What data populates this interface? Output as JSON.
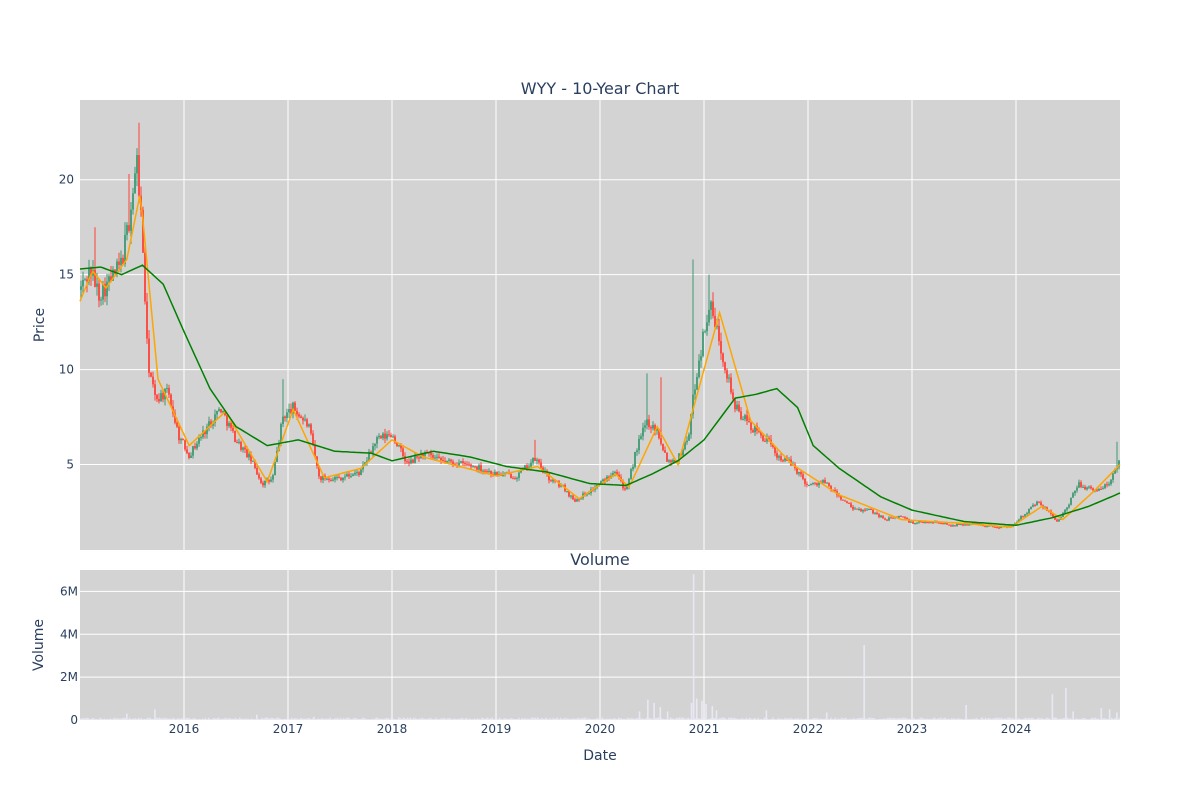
{
  "chart_data": [
    {
      "type": "candlestick",
      "title": "WYY - 10-Year Chart",
      "ylabel": "Price",
      "xlim": [
        2015.0,
        2025.0
      ],
      "ylim": [
        0.5,
        24.2
      ],
      "grid": true,
      "x_ticks": [
        "2016",
        "2017",
        "2018",
        "2019",
        "2020",
        "2021",
        "2022",
        "2023",
        "2024"
      ],
      "y_ticks": [
        "5",
        "10",
        "15",
        "20"
      ],
      "colors": {
        "plot_bg": "#d3d3d3",
        "increasing": "#3d9970",
        "decreasing": "#ff4136",
        "ma_short": "#ffa500",
        "ma_long": "#008000"
      },
      "price_keyframes": [
        [
          2015.0,
          14.2
        ],
        [
          2015.1,
          15.3
        ],
        [
          2015.18,
          14.0
        ],
        [
          2015.28,
          14.6
        ],
        [
          2015.4,
          15.6
        ],
        [
          2015.47,
          17.8
        ],
        [
          2015.55,
          21.0
        ],
        [
          2015.6,
          17.0
        ],
        [
          2015.65,
          10.5
        ],
        [
          2015.72,
          8.5
        ],
        [
          2015.85,
          8.8
        ],
        [
          2015.95,
          6.5
        ],
        [
          2016.05,
          5.5
        ],
        [
          2016.2,
          6.8
        ],
        [
          2016.35,
          8.0
        ],
        [
          2016.5,
          6.3
        ],
        [
          2016.65,
          5.2
        ],
        [
          2016.75,
          4.0
        ],
        [
          2016.85,
          4.2
        ],
        [
          2016.95,
          7.5
        ],
        [
          2017.05,
          8.0
        ],
        [
          2017.2,
          7.0
        ],
        [
          2017.3,
          4.3
        ],
        [
          2017.5,
          4.3
        ],
        [
          2017.7,
          4.6
        ],
        [
          2017.85,
          6.3
        ],
        [
          2018.0,
          6.6
        ],
        [
          2018.15,
          5.0
        ],
        [
          2018.3,
          5.6
        ],
        [
          2018.45,
          5.2
        ],
        [
          2018.6,
          5.1
        ],
        [
          2018.8,
          4.9
        ],
        [
          2019.0,
          4.5
        ],
        [
          2019.2,
          4.4
        ],
        [
          2019.38,
          5.3
        ],
        [
          2019.5,
          4.3
        ],
        [
          2019.65,
          3.8
        ],
        [
          2019.75,
          3.1
        ],
        [
          2019.9,
          3.6
        ],
        [
          2020.05,
          4.2
        ],
        [
          2020.15,
          4.8
        ],
        [
          2020.25,
          3.5
        ],
        [
          2020.35,
          5.8
        ],
        [
          2020.45,
          7.3
        ],
        [
          2020.55,
          6.8
        ],
        [
          2020.65,
          5.2
        ],
        [
          2020.75,
          5.3
        ],
        [
          2020.85,
          6.5
        ],
        [
          2020.92,
          9.5
        ],
        [
          2021.05,
          13.5
        ],
        [
          2021.15,
          11.5
        ],
        [
          2021.3,
          8.0
        ],
        [
          2021.45,
          7.0
        ],
        [
          2021.6,
          6.3
        ],
        [
          2021.7,
          5.5
        ],
        [
          2021.85,
          5.0
        ],
        [
          2022.0,
          3.9
        ],
        [
          2022.15,
          4.1
        ],
        [
          2022.3,
          3.3
        ],
        [
          2022.45,
          2.6
        ],
        [
          2022.6,
          2.6
        ],
        [
          2022.75,
          2.1
        ],
        [
          2022.9,
          2.3
        ],
        [
          2023.0,
          1.9
        ],
        [
          2023.2,
          2.0
        ],
        [
          2023.4,
          1.8
        ],
        [
          2023.6,
          1.9
        ],
        [
          2023.8,
          1.7
        ],
        [
          2023.95,
          1.75
        ],
        [
          2024.1,
          2.5
        ],
        [
          2024.2,
          3.0
        ],
        [
          2024.3,
          2.6
        ],
        [
          2024.4,
          2.0
        ],
        [
          2024.5,
          2.8
        ],
        [
          2024.6,
          4.0
        ],
        [
          2024.75,
          3.6
        ],
        [
          2024.9,
          4.0
        ],
        [
          2025.0,
          5.3
        ]
      ],
      "spikes": [
        [
          2015.57,
          23.0
        ],
        [
          2015.47,
          20.3
        ],
        [
          2015.15,
          17.5
        ],
        [
          2020.9,
          15.8
        ],
        [
          2021.05,
          15.0
        ],
        [
          2020.45,
          9.8
        ],
        [
          2020.58,
          9.6
        ],
        [
          2016.96,
          9.5
        ],
        [
          2019.37,
          6.3
        ],
        [
          2024.97,
          6.2
        ]
      ],
      "ma_short_keyframes": [
        [
          2015.0,
          13.6
        ],
        [
          2015.12,
          15.2
        ],
        [
          2015.25,
          14.3
        ],
        [
          2015.45,
          15.8
        ],
        [
          2015.58,
          19.3
        ],
        [
          2015.75,
          9.5
        ],
        [
          2016.05,
          6.0
        ],
        [
          2016.4,
          7.8
        ],
        [
          2016.8,
          4.1
        ],
        [
          2017.05,
          7.9
        ],
        [
          2017.35,
          4.3
        ],
        [
          2017.7,
          4.8
        ],
        [
          2018.0,
          6.3
        ],
        [
          2018.3,
          5.4
        ],
        [
          2019.0,
          4.4
        ],
        [
          2019.4,
          4.9
        ],
        [
          2019.8,
          3.2
        ],
        [
          2020.15,
          4.5
        ],
        [
          2020.28,
          3.8
        ],
        [
          2020.55,
          7.0
        ],
        [
          2020.75,
          5.0
        ],
        [
          2021.15,
          13.0
        ],
        [
          2021.45,
          7.3
        ],
        [
          2021.85,
          5.0
        ],
        [
          2022.3,
          3.4
        ],
        [
          2022.9,
          2.1
        ],
        [
          2023.5,
          1.9
        ],
        [
          2023.95,
          1.7
        ],
        [
          2024.25,
          2.8
        ],
        [
          2024.45,
          2.1
        ],
        [
          2024.75,
          3.6
        ],
        [
          2025.0,
          5.0
        ]
      ],
      "ma_long_keyframes": [
        [
          2015.0,
          15.3
        ],
        [
          2015.2,
          15.4
        ],
        [
          2015.4,
          15.0
        ],
        [
          2015.6,
          15.5
        ],
        [
          2015.8,
          14.5
        ],
        [
          2016.0,
          12.0
        ],
        [
          2016.25,
          9.0
        ],
        [
          2016.5,
          7.0
        ],
        [
          2016.8,
          6.0
        ],
        [
          2017.1,
          6.3
        ],
        [
          2017.45,
          5.7
        ],
        [
          2017.8,
          5.6
        ],
        [
          2018.0,
          5.2
        ],
        [
          2018.4,
          5.7
        ],
        [
          2018.75,
          5.4
        ],
        [
          2019.1,
          4.9
        ],
        [
          2019.5,
          4.6
        ],
        [
          2019.9,
          4.0
        ],
        [
          2020.25,
          3.9
        ],
        [
          2020.5,
          4.5
        ],
        [
          2020.75,
          5.2
        ],
        [
          2021.0,
          6.3
        ],
        [
          2021.3,
          8.5
        ],
        [
          2021.5,
          8.7
        ],
        [
          2021.7,
          9.0
        ],
        [
          2021.9,
          8.0
        ],
        [
          2022.05,
          6.0
        ],
        [
          2022.3,
          4.8
        ],
        [
          2022.7,
          3.3
        ],
        [
          2023.0,
          2.6
        ],
        [
          2023.5,
          2.0
        ],
        [
          2024.0,
          1.8
        ],
        [
          2024.35,
          2.2
        ],
        [
          2024.7,
          2.8
        ],
        [
          2025.0,
          3.5
        ]
      ]
    },
    {
      "type": "bar",
      "title": "Volume",
      "xlabel": "Date",
      "ylabel": "Volume",
      "xlim": [
        2015.0,
        2025.0
      ],
      "ylim": [
        0,
        7000000
      ],
      "grid": true,
      "x_ticks": [
        "2016",
        "2017",
        "2018",
        "2019",
        "2020",
        "2021",
        "2022",
        "2023",
        "2024"
      ],
      "y_ticks": [
        "0",
        "2M",
        "4M",
        "6M"
      ],
      "colors": {
        "plot_bg": "#d3d3d3",
        "bars": "#e8e8f4"
      },
      "volume_spikes": [
        [
          2015.45,
          300000
        ],
        [
          2015.72,
          500000
        ],
        [
          2016.7,
          250000
        ],
        [
          2017.25,
          150000
        ],
        [
          2019.4,
          120000
        ],
        [
          2020.38,
          400000
        ],
        [
          2020.46,
          950000
        ],
        [
          2020.52,
          800000
        ],
        [
          2020.58,
          600000
        ],
        [
          2020.65,
          400000
        ],
        [
          2020.88,
          800000
        ],
        [
          2020.9,
          6800000
        ],
        [
          2020.93,
          1000000
        ],
        [
          2020.98,
          900000
        ],
        [
          2021.02,
          750000
        ],
        [
          2021.08,
          650000
        ],
        [
          2021.12,
          450000
        ],
        [
          2021.6,
          450000
        ],
        [
          2022.18,
          350000
        ],
        [
          2022.54,
          3500000
        ],
        [
          2023.52,
          700000
        ],
        [
          2024.35,
          1200000
        ],
        [
          2024.48,
          1500000
        ],
        [
          2024.55,
          400000
        ],
        [
          2024.82,
          550000
        ],
        [
          2024.9,
          500000
        ],
        [
          2024.97,
          350000
        ]
      ]
    }
  ]
}
